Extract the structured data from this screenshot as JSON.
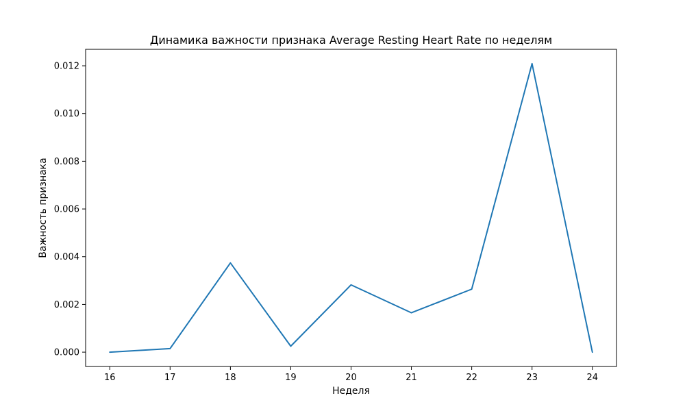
{
  "chart_data": {
    "type": "line",
    "title": "Динамика важности признака Average Resting Heart Rate по неделям",
    "xlabel": "Неделя",
    "ylabel": "Важность признака",
    "x": [
      16,
      17,
      18,
      19,
      20,
      21,
      22,
      23,
      24
    ],
    "series": [
      {
        "name": "Average Resting Heart Rate",
        "values": [
          0.0,
          0.00015,
          0.00374,
          0.00025,
          0.00282,
          0.00165,
          0.00264,
          0.01209,
          0.0
        ],
        "color": "#1f77b4"
      }
    ],
    "xticks": [
      "16",
      "17",
      "18",
      "19",
      "20",
      "21",
      "22",
      "23",
      "24"
    ],
    "yticks": [
      "0.000",
      "0.002",
      "0.004",
      "0.006",
      "0.008",
      "0.010",
      "0.012"
    ],
    "xlim": [
      15.6,
      24.4
    ],
    "ylim": [
      -0.0006,
      0.01269
    ],
    "grid": false,
    "legend": "none"
  }
}
